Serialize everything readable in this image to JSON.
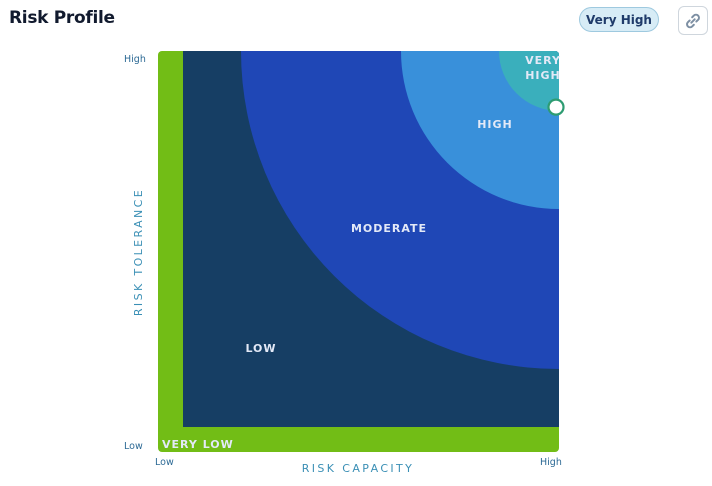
{
  "header": {
    "title": "Risk Profile",
    "badge_label": "Very High",
    "link_icon": "link-icon"
  },
  "chart": {
    "zones": [
      {
        "key": "very_low",
        "label": "VERY LOW",
        "color": "#72bd16"
      },
      {
        "key": "low",
        "label": "LOW",
        "color": "#163e64"
      },
      {
        "key": "moderate",
        "label": "MODERATE",
        "color": "#1f47b6"
      },
      {
        "key": "high",
        "label": "HIGH",
        "color": "#3990da"
      },
      {
        "key": "very_high",
        "label_line1": "VERY",
        "label_line2": "HIGH",
        "color": "#3aafbc"
      }
    ],
    "y_axis": {
      "title": "RISK TOLERANCE",
      "low": "Low",
      "high": "High"
    },
    "x_axis": {
      "title": "RISK CAPACITY",
      "low": "Low",
      "high": "High"
    },
    "marker": {
      "risk_capacity": 1.0,
      "risk_tolerance": 0.86,
      "color": "#2e9c72"
    }
  }
}
